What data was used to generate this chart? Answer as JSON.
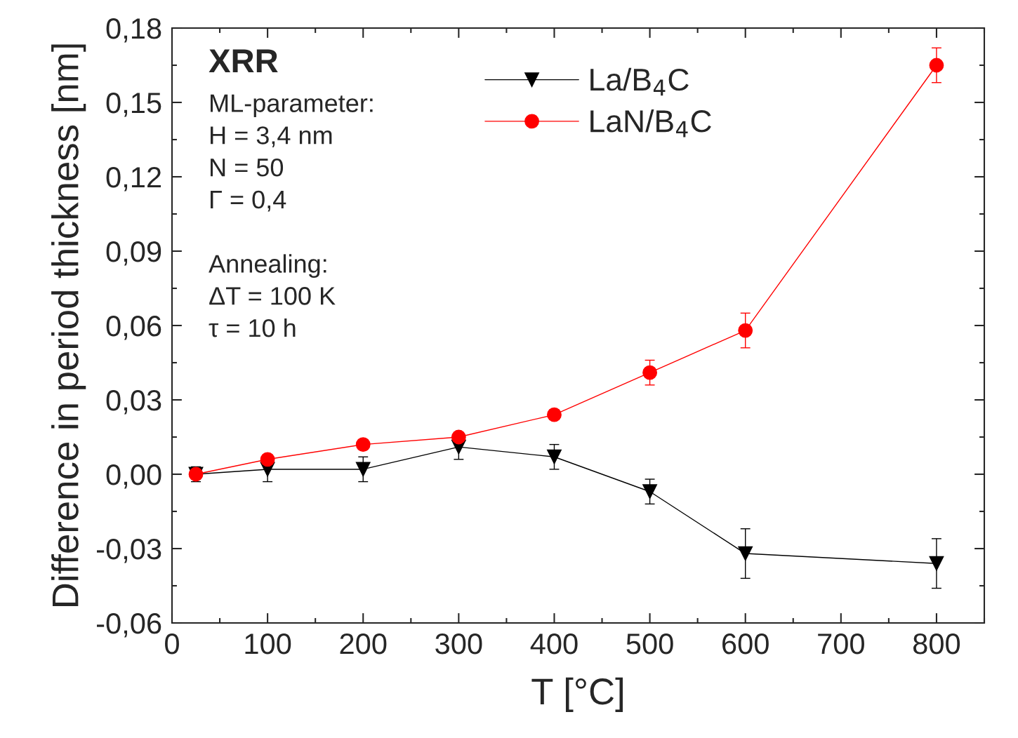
{
  "chart_data": {
    "type": "line",
    "xlabel": "T [°C]",
    "ylabel": "Difference in period thickness [nm]",
    "x": [
      25,
      100,
      200,
      300,
      400,
      500,
      600,
      800
    ],
    "series": [
      {
        "name": "La/B$_{4}$C",
        "color": "#000000",
        "marker": "triangle",
        "values": [
          0,
          0.002,
          0.002,
          0.011,
          0.007,
          -0.007,
          -0.032,
          -0.036
        ],
        "errors": [
          0.003,
          0.005,
          0.005,
          0.005,
          0.005,
          0.005,
          0.01,
          0.01
        ]
      },
      {
        "name": "LaN/B$_{4}$C",
        "color": "#ff0000",
        "marker": "circle",
        "values": [
          0,
          0.006,
          0.012,
          0.015,
          0.024,
          0.041,
          0.058,
          0.165
        ],
        "errors": [
          0.002,
          0.002,
          0.002,
          0.002,
          0.002,
          0.005,
          0.007,
          0.007
        ]
      }
    ],
    "xlim": [
      0,
      850
    ],
    "xticks": [
      0,
      100,
      200,
      300,
      400,
      500,
      600,
      700,
      800
    ],
    "ylim": [
      -0.06,
      0.18
    ],
    "yticks": [
      {
        "value": -0.06,
        "label": "-0,06"
      },
      {
        "value": -0.03,
        "label": "-0,03"
      },
      {
        "value": 0,
        "label": "0,00"
      },
      {
        "value": 0.03,
        "label": "0,03"
      },
      {
        "value": 0.06,
        "label": "0,06"
      },
      {
        "value": 0.09,
        "label": "0,09"
      },
      {
        "value": 0.12,
        "label": "0,12"
      },
      {
        "value": 0.15,
        "label": "0,15"
      },
      {
        "value": 0.18,
        "label": "0,18"
      }
    ],
    "annotations": [
      "XRR",
      "ML-parameter:",
      "H = 3,4 nm",
      "N = 50",
      "Γ = 0,4",
      "Annealing:",
      "ΔT = 100 K",
      "τ = 10 h"
    ],
    "legend": "top right",
    "grid": false
  }
}
